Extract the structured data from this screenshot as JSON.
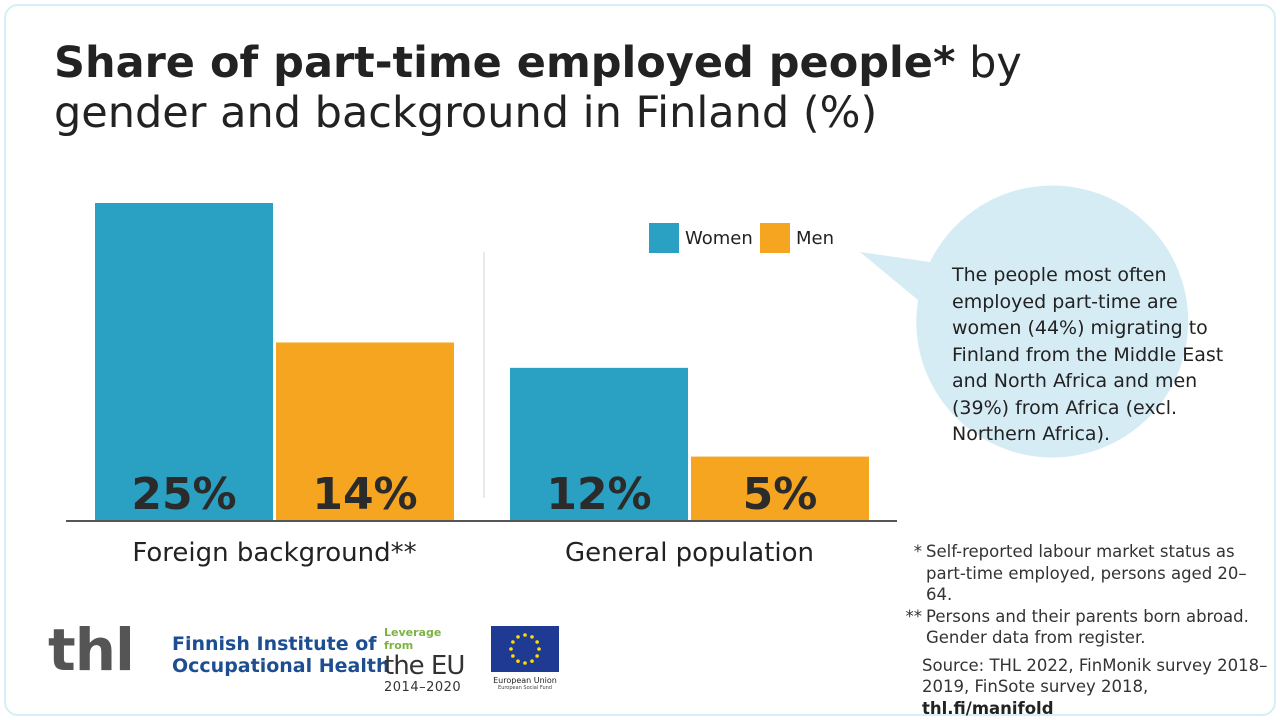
{
  "title": {
    "bold": "Share of part-time employed people*",
    "rest": " by gender and background in Finland (%)"
  },
  "chart_data": {
    "type": "bar",
    "categories": [
      "Foreign background**",
      "General population"
    ],
    "series": [
      {
        "name": "Women",
        "values": [
          25,
          12
        ],
        "color": "#2aa0c2"
      },
      {
        "name": "Men",
        "values": [
          14,
          5
        ],
        "color": "#f5a51f"
      }
    ],
    "data_labels": [
      [
        "25%",
        "14%"
      ],
      [
        "12%",
        "5%"
      ]
    ],
    "ylim": [
      0,
      25
    ],
    "grid": false,
    "legend_position": "top-right"
  },
  "bubble": {
    "text": "The people most often employed part-time are women (44%) migrating to Finland from the Middle East and North Africa and men (39%) from Africa (excl. Northern Africa)."
  },
  "footnotes": {
    "note1_mark": "*",
    "note1": "Self-reported labour market status as part-time employed, persons aged 20–64.",
    "note2_mark": "**",
    "note2": "Persons and their parents born abroad. Gender data from register.",
    "source": "Source: THL 2022, FinMonik survey 2018–2019, FinSote survey 2018,",
    "link": "thl.fi/manifold"
  },
  "logos": {
    "thl": "thl",
    "fioh_line1": "Finnish Institute of",
    "fioh_line2": "Occupational Health",
    "eu_leverage": "Leverage from",
    "eu_the": "the EU",
    "eu_years": "2014–2020",
    "eu_flag_caption": "European Union",
    "eu_flag_sub": "European Social Fund"
  },
  "colors": {
    "bubble_fill": "#d6ecf5",
    "axis": "#555555"
  }
}
